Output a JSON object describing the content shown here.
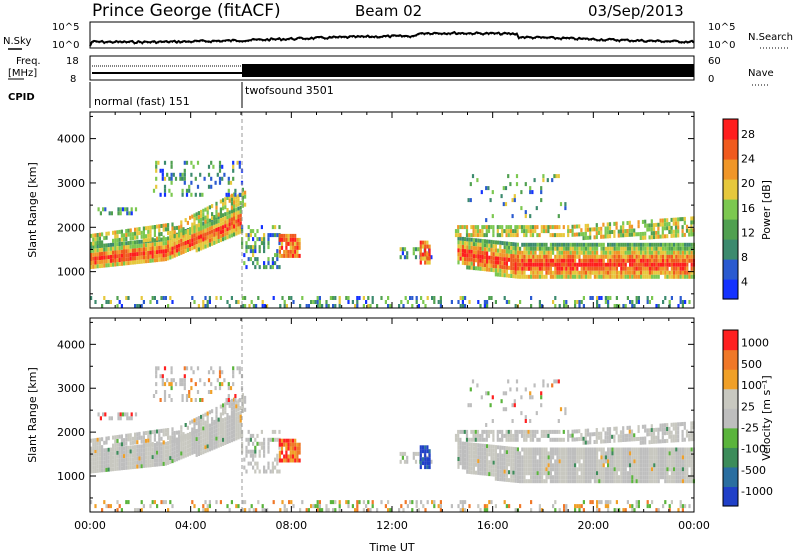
{
  "header": {
    "station": "Prince George (fitACF)",
    "beam": "Beam 02",
    "date": "03/Sep/2013"
  },
  "noise_panel": {
    "left_label": "N.Sky",
    "right_label": "N.Search",
    "left_ticks": [
      "10^5",
      "10^0"
    ],
    "right_ticks": [
      "10^5",
      "10^0"
    ]
  },
  "freq_panel": {
    "left_label_1": "Freq.",
    "left_label_2": "[MHz]",
    "right_label": "Nave",
    "left_ticks": [
      "18",
      "8"
    ],
    "right_ticks": [
      "60",
      "0"
    ]
  },
  "cpid": {
    "label": "CPID",
    "segments": [
      {
        "name": "normal (fast) 151",
        "start_hour": 0
      },
      {
        "name": "twofsound 3501",
        "start_hour": 6
      }
    ]
  },
  "chart_data": [
    {
      "type": "heatmap",
      "name": "power",
      "ylabel": "Slant Range [km]",
      "ylim": [
        180,
        4600
      ],
      "y_ticks": [
        "4000",
        "3000",
        "2000",
        "1000"
      ],
      "x_ticks": [
        "00:00",
        "04:00",
        "08:00",
        "12:00",
        "16:00",
        "20:00",
        "00:00"
      ],
      "xlim_hours": [
        0,
        24
      ],
      "colorbar": {
        "label": "Power [dB]",
        "ticks": [
          "28",
          "24",
          "20",
          "16",
          "12",
          "8",
          "4"
        ],
        "range": [
          0,
          30
        ]
      }
    },
    {
      "type": "heatmap",
      "name": "velocity",
      "ylabel": "Slant Range [km]",
      "xlabel": "Time UT",
      "ylim": [
        180,
        4600
      ],
      "y_ticks": [
        "4000",
        "3000",
        "2000",
        "1000"
      ],
      "x_ticks": [
        "00:00",
        "04:00",
        "08:00",
        "12:00",
        "16:00",
        "20:00",
        "00:00"
      ],
      "xlim_hours": [
        0,
        24
      ],
      "colorbar": {
        "label": "Velocity [m s⁻¹]",
        "ticks": [
          "1000",
          "500",
          "100",
          "25",
          "-25",
          "-100",
          "-500",
          "-1000"
        ]
      }
    }
  ],
  "colors": {
    "power_scale": [
      "#1432ff",
      "#2a5ad0",
      "#3c8a6e",
      "#50a050",
      "#7cc850",
      "#e6c83c",
      "#f09628",
      "#f05a1e",
      "#ff1e1e"
    ],
    "velocity_scale": [
      "#2040c8",
      "#2a6ea0",
      "#3c8c5a",
      "#5ab43c",
      "#bebebe",
      "#c8c8c0",
      "#f0a028",
      "#f07828",
      "#ff2020"
    ]
  }
}
